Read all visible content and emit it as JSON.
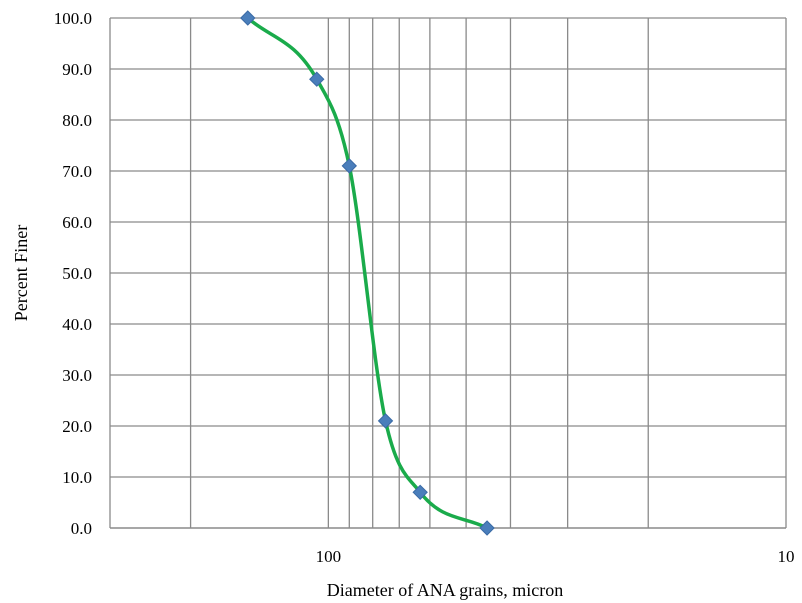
{
  "chart_data": {
    "type": "line",
    "title": "",
    "xlabel": "Diameter of ANA grains, micron",
    "ylabel": "Percent Finer",
    "x_scale": "log",
    "x_reversed": true,
    "xlim": [
      300,
      10
    ],
    "ylim": [
      0,
      100
    ],
    "x_ticks": [
      {
        "value": 100,
        "label": "100"
      },
      {
        "value": 10,
        "label": "10"
      }
    ],
    "y_ticks": [
      {
        "value": 0,
        "label": "0.0"
      },
      {
        "value": 10,
        "label": "10.0"
      },
      {
        "value": 20,
        "label": "20.0"
      },
      {
        "value": 30,
        "label": "30.0"
      },
      {
        "value": 40,
        "label": "40.0"
      },
      {
        "value": 50,
        "label": "50.0"
      },
      {
        "value": 60,
        "label": "60.0"
      },
      {
        "value": 70,
        "label": "70.0"
      },
      {
        "value": 80,
        "label": "80.0"
      },
      {
        "value": 90,
        "label": "90.0"
      },
      {
        "value": 100,
        "label": "100.0"
      }
    ],
    "grid": true,
    "legend": "none",
    "series": [
      {
        "x": [
          150,
          106,
          90,
          75,
          63,
          45
        ],
        "y": [
          100,
          88,
          71,
          21,
          7,
          0
        ],
        "line_color": "#1aab4b",
        "marker": "diamond",
        "marker_color": "#4a7ebb",
        "smooth": true
      }
    ]
  }
}
